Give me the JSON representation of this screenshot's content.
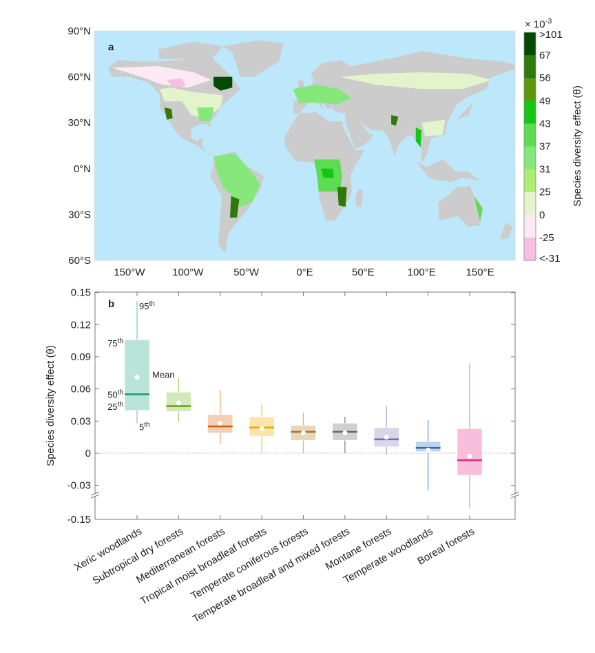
{
  "map_panel": {
    "panel_label": "a",
    "lat_ticks": [
      "90°N",
      "60°N",
      "30°N",
      "0°N",
      "30°S",
      "60°S"
    ],
    "lat_values": [
      90,
      60,
      30,
      0,
      -30,
      -60
    ],
    "lon_ticks": [
      "150°W",
      "100°W",
      "50°W",
      "0°E",
      "50°E",
      "100°E",
      "150°E"
    ],
    "lon_values": [
      -150,
      -100,
      -50,
      0,
      50,
      100,
      150
    ],
    "ocean_color": "#bde8fb",
    "land_color": "#cccccc",
    "colorbar": {
      "multiplier": "× 10",
      "exponent": "-3",
      "label": "Species diversity effect (θ)",
      "tick_labels": [
        ">101",
        "67",
        "56",
        "49",
        "43",
        "37",
        "31",
        "25",
        "0",
        "-25",
        "<-31"
      ],
      "colors": [
        "#034a03",
        "#2f7a0a",
        "#5e980a",
        "#12c814",
        "#5cdc50",
        "#86e87a",
        "#aeec72",
        "#e3f3cc",
        "#fbeaf3",
        "#f5bfe0"
      ]
    }
  },
  "chart_data": {
    "type": "box",
    "panel_label": "b",
    "ylabel": "Species diversity effect (θ)",
    "ytick_labels": [
      "0.15",
      "0.12",
      "0.09",
      "0.06",
      "0.03",
      "0",
      "-0.03",
      "-0.15"
    ],
    "ytick_values": [
      0.15,
      0.12,
      0.09,
      0.06,
      0.03,
      0,
      -0.03,
      -0.15
    ],
    "ylim": [
      -0.15,
      0.15
    ],
    "axis_break": [
      -0.04,
      -0.14
    ],
    "zero_line": true,
    "categories": [
      "Xeric woodlands",
      "Subtropical dry forests",
      "Mediterranean forests",
      "Tropical moist broadleaf forests",
      "Temperate coniferous forests",
      "Temperate broadleaf and mixed forests",
      "Montane forests",
      "Temperate woodlands",
      "Boreal forests"
    ],
    "series": [
      {
        "p5": 0.028,
        "p25": 0.04,
        "p50": 0.055,
        "mean": 0.071,
        "p75": 0.106,
        "p95": 0.142,
        "box_color": "#b9e4d8",
        "line_color": "#1b9e77",
        "whisker_color": "#7fd3b9"
      },
      {
        "p5": 0.029,
        "p25": 0.039,
        "p50": 0.044,
        "mean": 0.047,
        "p75": 0.057,
        "p95": 0.07,
        "box_color": "#d4e8b9",
        "line_color": "#66a61e",
        "whisker_color": "#a6d07a"
      },
      {
        "p5": 0.008,
        "p25": 0.019,
        "p50": 0.025,
        "mean": 0.028,
        "p75": 0.036,
        "p95": 0.059,
        "box_color": "#f5cfb3",
        "line_color": "#d95f02",
        "whisker_color": "#f0a878"
      },
      {
        "p5": 0.001,
        "p25": 0.016,
        "p50": 0.024,
        "mean": 0.023,
        "p75": 0.034,
        "p95": 0.046,
        "box_color": "#f9e5ab",
        "line_color": "#e6ab02",
        "whisker_color": "#f0c84a"
      },
      {
        "p5": 0.0,
        "p25": 0.012,
        "p50": 0.02,
        "mean": 0.019,
        "p75": 0.026,
        "p95": 0.038,
        "box_color": "#e5d7b7",
        "line_color": "#a6761d",
        "whisker_color": "#d0b888"
      },
      {
        "p5": 0.0,
        "p25": 0.012,
        "p50": 0.02,
        "mean": 0.019,
        "p75": 0.028,
        "p95": 0.034,
        "box_color": "#d0d0d0",
        "line_color": "#666666",
        "whisker_color": "#888888"
      },
      {
        "p5": -0.001,
        "p25": 0.006,
        "p50": 0.013,
        "mean": 0.015,
        "p75": 0.024,
        "p95": 0.044,
        "box_color": "#d9d6ea",
        "line_color": "#7570b3",
        "whisker_color": "#aaa6d4"
      },
      {
        "p5": -0.0345,
        "p25": 0.0015,
        "p50": 0.005,
        "mean": 0.003,
        "p75": 0.011,
        "p95": 0.031,
        "box_color": "#c0d3ea",
        "line_color": "#2f6db5",
        "whisker_color": "#6e9bd4"
      },
      {
        "p5": -0.095,
        "p25": -0.0205,
        "p50": -0.0065,
        "mean": -0.0027,
        "p75": 0.023,
        "p95": 0.084,
        "box_color": "#f7bfdc",
        "line_color": "#e7298a",
        "whisker_color": "#f58cc0"
      }
    ],
    "annotations": {
      "p95": {
        "num": "95",
        "sup": "th"
      },
      "p75": {
        "num": "75",
        "sup": "th"
      },
      "mean": "Mean",
      "p50": {
        "num": "50",
        "sup": "th"
      },
      "p25": {
        "num": "25",
        "sup": "th"
      },
      "p5": {
        "num": "5",
        "sup": "th"
      }
    }
  }
}
